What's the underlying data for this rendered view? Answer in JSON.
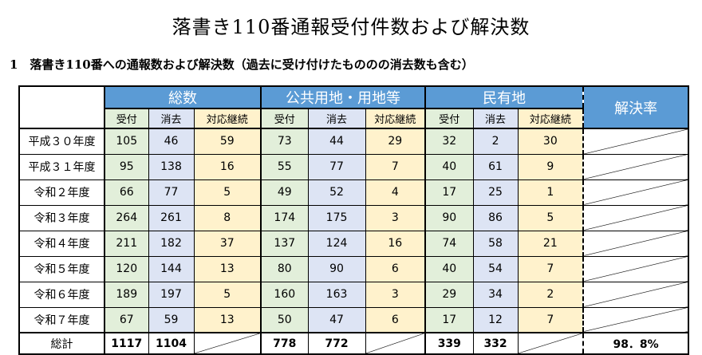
{
  "title": "落書き110番通報受付件数および解決数",
  "subtitle": "1　落書き110番への通報数および解決数（過去に受け付けたもののの消去数も含む）",
  "groups": {
    "total": "総数",
    "public": "公共用地・用地等",
    "private": "民有地",
    "rate": "解決率"
  },
  "columns": {
    "received": "受付",
    "erased": "消去",
    "ongoing": "対応継続"
  },
  "rows": [
    {
      "label": "平成３０年度",
      "t": [
        "105",
        "46",
        "59"
      ],
      "p": [
        "73",
        "44",
        "29"
      ],
      "m": [
        "32",
        "2",
        "30"
      ]
    },
    {
      "label": "平成３１年度",
      "t": [
        "95",
        "138",
        "16"
      ],
      "p": [
        "55",
        "77",
        "7"
      ],
      "m": [
        "40",
        "61",
        "9"
      ]
    },
    {
      "label": "令和２年度",
      "t": [
        "66",
        "77",
        "5"
      ],
      "p": [
        "49",
        "52",
        "4"
      ],
      "m": [
        "17",
        "25",
        "1"
      ]
    },
    {
      "label": "令和３年度",
      "t": [
        "264",
        "261",
        "8"
      ],
      "p": [
        "174",
        "175",
        "3"
      ],
      "m": [
        "90",
        "86",
        "5"
      ]
    },
    {
      "label": "令和４年度",
      "t": [
        "211",
        "182",
        "37"
      ],
      "p": [
        "137",
        "124",
        "16"
      ],
      "m": [
        "74",
        "58",
        "21"
      ]
    },
    {
      "label": "令和５年度",
      "t": [
        "120",
        "144",
        "13"
      ],
      "p": [
        "80",
        "90",
        "6"
      ],
      "m": [
        "40",
        "54",
        "7"
      ]
    },
    {
      "label": "令和６年度",
      "t": [
        "189",
        "197",
        "5"
      ],
      "p": [
        "160",
        "163",
        "3"
      ],
      "m": [
        "29",
        "34",
        "2"
      ]
    },
    {
      "label": "令和７年度",
      "t": [
        "67",
        "59",
        "13"
      ],
      "p": [
        "50",
        "47",
        "6"
      ],
      "m": [
        "17",
        "12",
        "7"
      ]
    }
  ],
  "total": {
    "label": "総計",
    "t": [
      "1117",
      "1104"
    ],
    "p": [
      "778",
      "772"
    ],
    "m": [
      "339",
      "332"
    ],
    "rate": "98．8%"
  }
}
